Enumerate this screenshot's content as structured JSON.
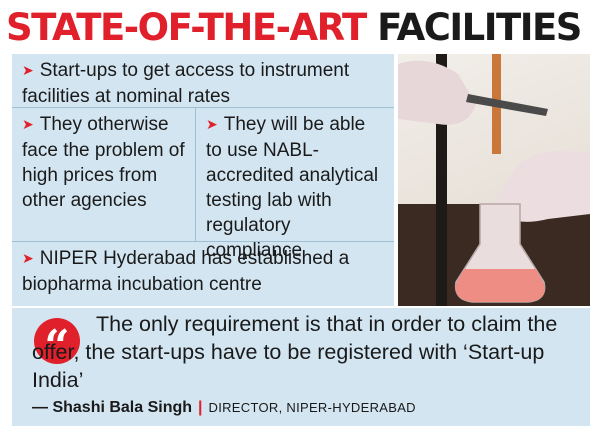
{
  "headline": {
    "part1": "STATE-OF-THE-ART",
    "part2": "FACILITIES"
  },
  "facts": [
    {
      "text": "Start-ups to get access to instrument facilities at nominal rates"
    },
    {
      "text": "They otherwise face the problem of high prices from other agencies"
    },
    {
      "text": "They will be able to use NABL-accredited analytical testing lab with regulatory compliance"
    },
    {
      "text": "NIPER Hyderabad has established a biopharma incubation centre"
    }
  ],
  "bullet_glyph": "➤",
  "photo": {
    "icon": "lab-flask-photo"
  },
  "quote": {
    "glyph": "“",
    "text": "The only requirement is that in order to claim the offer, the start-ups have to be registered with ‘Start-up India’",
    "author": "— Shashi Bala Singh",
    "separator": "|",
    "role": "DIRECTOR, NIPER-HYDERABAD"
  },
  "colors": {
    "accent_red": "#e0202a",
    "panel_blue": "#d2e5f1",
    "text_dark": "#1a1a1a"
  }
}
